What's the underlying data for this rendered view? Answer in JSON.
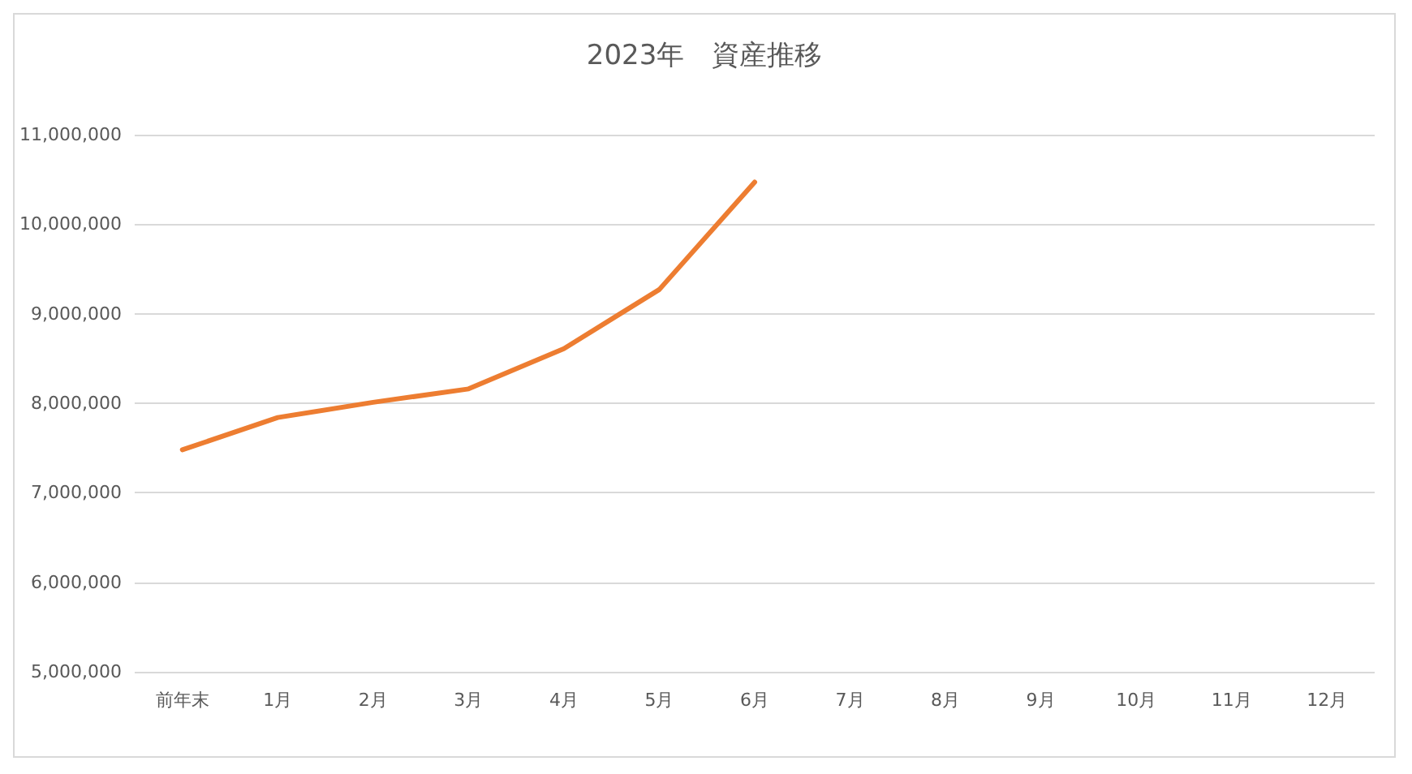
{
  "chart_data": {
    "type": "line",
    "title": "2023年　資産推移",
    "categories": [
      "前年末",
      "1月",
      "2月",
      "3月",
      "4月",
      "5月",
      "6月",
      "7月",
      "8月",
      "9月",
      "10月",
      "11月",
      "12月"
    ],
    "series": [
      {
        "color": "#ed7d31",
        "values": [
          7480000,
          7840000,
          8010000,
          8160000,
          8610000,
          9270000,
          10470000,
          null,
          null,
          null,
          null,
          null,
          null
        ]
      }
    ],
    "ylim": [
      5000000,
      11000000
    ],
    "yticks": [
      {
        "value": 5000000,
        "label": "5,000,000"
      },
      {
        "value": 6000000,
        "label": "6,000,000"
      },
      {
        "value": 7000000,
        "label": "7,000,000"
      },
      {
        "value": 8000000,
        "label": "8,000,000"
      },
      {
        "value": 9000000,
        "label": "9,000,000"
      },
      {
        "value": 10000000,
        "label": "10,000,000"
      },
      {
        "value": 11000000,
        "label": "11,000,000"
      }
    ],
    "grid": "y",
    "marker": "none",
    "line_style": "solid"
  }
}
